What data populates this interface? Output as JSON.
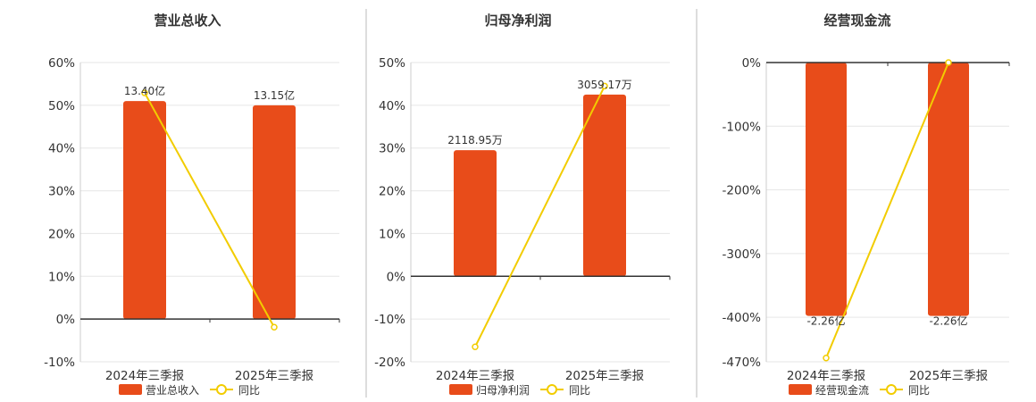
{
  "colors": {
    "bar": "#E84C1A",
    "line": "#F2CC00",
    "grid": "#e6e6e6",
    "axis": "#333333",
    "divider": "#bbbbbb"
  },
  "chart_data": [
    {
      "type": "bar",
      "title": "营业总收入",
      "categories": [
        "2024年三季报",
        "2025年三季报"
      ],
      "yticks": [
        60,
        50,
        40,
        30,
        20,
        10,
        0,
        -10
      ],
      "tick_labels": [
        "60%",
        "50%",
        "40%",
        "30%",
        "20%",
        "10%",
        "0%",
        "-10%"
      ],
      "ylim": [
        -10,
        60
      ],
      "series": [
        {
          "name": "营业总收入",
          "type": "bar",
          "values": [
            51,
            50
          ],
          "labels": [
            "13.40亿",
            "13.15亿"
          ]
        },
        {
          "name": "同比",
          "type": "line",
          "values": [
            52.9,
            -1.9
          ]
        }
      ],
      "legend_placement": "bottom"
    },
    {
      "type": "bar",
      "title": "归母净利润",
      "categories": [
        "2024年三季报",
        "2025年三季报"
      ],
      "yticks": [
        50,
        40,
        30,
        20,
        10,
        0,
        -10,
        -20
      ],
      "tick_labels": [
        "50%",
        "40%",
        "30%",
        "20%",
        "10%",
        "0%",
        "-10%",
        "-20%"
      ],
      "ylim": [
        -20,
        50
      ],
      "series": [
        {
          "name": "归母净利润",
          "type": "bar",
          "values": [
            29.5,
            42.5
          ],
          "labels": [
            "2118.95万",
            "3059.17万"
          ]
        },
        {
          "name": "同比",
          "type": "line",
          "values": [
            -16.5,
            44.5
          ]
        }
      ],
      "legend_placement": "bottom"
    },
    {
      "type": "bar",
      "title": "经营现金流",
      "categories": [
        "2024年三季报",
        "2025年三季报"
      ],
      "yticks": [
        0,
        -100,
        -200,
        -300,
        -400,
        -470
      ],
      "tick_labels": [
        "0%",
        "-100%",
        "-200%",
        "-300%",
        "-400%",
        "-470%"
      ],
      "ylim": [
        -470,
        0
      ],
      "series": [
        {
          "name": "经营现金流",
          "type": "bar",
          "values": [
            -398,
            -398
          ],
          "labels": [
            "-2.26亿",
            "-2.26亿"
          ]
        },
        {
          "name": "同比",
          "type": "line",
          "values": [
            -464,
            0
          ]
        }
      ],
      "legend_placement": "bottom"
    }
  ]
}
